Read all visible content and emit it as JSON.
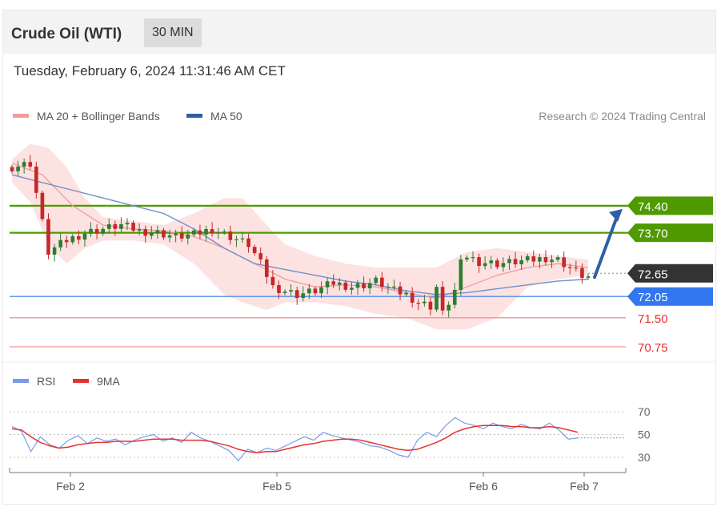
{
  "header": {
    "title": "Crude Oil (WTI)",
    "timeframe": "30 MIN",
    "datetime": "Tuesday, February 6, 2024 11:31:46 AM CET"
  },
  "legend": {
    "ma20": "MA 20 + Bollinger Bands",
    "ma50": "MA 50",
    "copyright": "Research © 2024 Trading Central"
  },
  "rsi_legend": {
    "rsi": "RSI",
    "ma9": "9MA"
  },
  "colors": {
    "resistance": "#4f9a00",
    "support": "#3377ee",
    "support_line": "#6699ee",
    "target_line": "#f08b8b",
    "target_text": "#e83030",
    "current": "#333333",
    "ma20": "#f29c9c",
    "bollinger": "#fde0e0",
    "ma50": "#6e8fc9",
    "candle_up": "#2e7d32",
    "candle_down": "#c62828",
    "arrow": "#2f5fa3",
    "rsi": "#7a9ae8",
    "rsi_ma": "#e83030"
  },
  "chart_data": [
    {
      "type": "candlestick",
      "title": "Crude Oil (WTI)",
      "timeframe": "30 MIN",
      "x_ticks": [
        "Feb 2",
        "Feb 5",
        "Feb 6",
        "Feb 7"
      ],
      "ylim": [
        70.5,
        76.2
      ],
      "levels": [
        {
          "value": 74.4,
          "label": "74.40",
          "kind": "resistance"
        },
        {
          "value": 73.7,
          "label": "73.70",
          "kind": "resistance"
        },
        {
          "value": 72.65,
          "label": "72.65",
          "kind": "current"
        },
        {
          "value": 72.05,
          "label": "72.05",
          "kind": "support"
        },
        {
          "value": 71.5,
          "label": "71.50",
          "kind": "target"
        },
        {
          "value": 70.75,
          "label": "70.75",
          "kind": "target"
        }
      ],
      "close_path": [
        [
          0,
          75.4
        ],
        [
          3,
          75.5
        ],
        [
          6,
          73.2
        ],
        [
          9,
          73.5
        ],
        [
          12,
          73.7
        ],
        [
          15,
          73.8
        ],
        [
          18,
          73.9
        ],
        [
          21,
          73.75
        ],
        [
          24,
          73.7
        ],
        [
          27,
          73.6
        ],
        [
          30,
          73.65
        ],
        [
          33,
          73.8
        ],
        [
          36,
          73.6
        ],
        [
          39,
          73.4
        ],
        [
          41,
          72.9
        ],
        [
          43,
          72.3
        ],
        [
          45,
          72.2
        ],
        [
          47,
          72.1
        ],
        [
          50,
          72.2
        ],
        [
          53,
          72.4
        ],
        [
          56,
          72.3
        ],
        [
          58,
          72.35
        ],
        [
          60,
          72.45
        ],
        [
          63,
          72.2
        ],
        [
          65,
          72.1
        ],
        [
          67,
          71.9
        ],
        [
          69,
          71.8
        ],
        [
          70,
          72.3
        ],
        [
          71,
          71.6
        ],
        [
          72,
          71.9
        ],
        [
          73,
          72.2
        ],
        [
          74,
          72.9
        ],
        [
          75,
          73.1
        ],
        [
          77,
          72.95
        ],
        [
          80,
          72.9
        ],
        [
          83,
          72.95
        ],
        [
          86,
          73.0
        ],
        [
          88,
          73.05
        ],
        [
          90,
          73.0
        ],
        [
          92,
          72.8
        ],
        [
          94,
          72.6
        ],
        [
          95,
          72.55
        ]
      ],
      "ma20_path": [
        [
          0,
          75.5
        ],
        [
          5,
          75.2
        ],
        [
          10,
          74.4
        ],
        [
          15,
          73.9
        ],
        [
          20,
          73.8
        ],
        [
          25,
          73.75
        ],
        [
          30,
          73.6
        ],
        [
          35,
          73.3
        ],
        [
          40,
          72.9
        ],
        [
          45,
          72.5
        ],
        [
          50,
          72.3
        ],
        [
          55,
          72.35
        ],
        [
          60,
          72.3
        ],
        [
          65,
          72.15
        ],
        [
          70,
          72.0
        ],
        [
          75,
          72.3
        ],
        [
          80,
          72.6
        ],
        [
          85,
          72.8
        ],
        [
          90,
          72.9
        ],
        [
          95,
          72.8
        ]
      ],
      "bb_upper_path": [
        [
          0,
          75.6
        ],
        [
          3,
          76.0
        ],
        [
          6,
          75.9
        ],
        [
          9,
          75.4
        ],
        [
          12,
          74.6
        ],
        [
          15,
          74.1
        ],
        [
          20,
          74.0
        ],
        [
          25,
          73.9
        ],
        [
          30,
          74.2
        ],
        [
          35,
          74.6
        ],
        [
          38,
          74.6
        ],
        [
          42,
          73.9
        ],
        [
          45,
          73.4
        ],
        [
          50,
          73.1
        ],
        [
          55,
          72.9
        ],
        [
          60,
          72.8
        ],
        [
          65,
          72.8
        ],
        [
          70,
          72.8
        ],
        [
          75,
          73.2
        ],
        [
          80,
          73.3
        ],
        [
          85,
          73.2
        ],
        [
          90,
          73.1
        ],
        [
          95,
          73.0
        ]
      ],
      "bb_lower_path": [
        [
          0,
          75.0
        ],
        [
          3,
          74.5
        ],
        [
          6,
          73.4
        ],
        [
          9,
          72.9
        ],
        [
          12,
          73.3
        ],
        [
          15,
          73.5
        ],
        [
          20,
          73.5
        ],
        [
          25,
          73.4
        ],
        [
          30,
          72.9
        ],
        [
          35,
          72.1
        ],
        [
          38,
          71.9
        ],
        [
          42,
          71.7
        ],
        [
          45,
          71.9
        ],
        [
          50,
          71.9
        ],
        [
          55,
          71.8
        ],
        [
          60,
          71.6
        ],
        [
          65,
          71.5
        ],
        [
          70,
          71.2
        ],
        [
          75,
          71.2
        ],
        [
          80,
          71.5
        ],
        [
          85,
          72.3
        ],
        [
          90,
          72.5
        ],
        [
          95,
          72.6
        ]
      ],
      "ma50_path": [
        [
          0,
          75.2
        ],
        [
          5,
          75.0
        ],
        [
          10,
          74.8
        ],
        [
          15,
          74.6
        ],
        [
          20,
          74.4
        ],
        [
          25,
          74.2
        ],
        [
          30,
          73.8
        ],
        [
          35,
          73.3
        ],
        [
          40,
          72.9
        ],
        [
          45,
          72.75
        ],
        [
          50,
          72.6
        ],
        [
          55,
          72.45
        ],
        [
          60,
          72.35
        ],
        [
          65,
          72.2
        ],
        [
          70,
          72.1
        ],
        [
          75,
          72.15
        ],
        [
          80,
          72.25
        ],
        [
          85,
          72.35
        ],
        [
          90,
          72.45
        ],
        [
          95,
          72.5
        ]
      ],
      "projection": {
        "from": 95,
        "to_value": 74.4,
        "label": "74.40"
      }
    },
    {
      "type": "line",
      "name": "RSI",
      "x_ticks": [
        "Feb 2",
        "Feb 5",
        "Feb 6",
        "Feb 7"
      ],
      "ylim": [
        20,
        80
      ],
      "y_ticks": [
        70,
        50,
        30
      ],
      "series": [
        {
          "name": "RSI",
          "values": [
            57,
            53,
            35,
            48,
            41,
            38,
            45,
            49,
            42,
            47,
            44,
            46,
            41,
            45,
            48,
            50,
            44,
            47,
            43,
            52,
            47,
            44,
            40,
            36,
            27,
            37,
            34,
            38,
            36,
            40,
            44,
            48,
            45,
            52,
            49,
            47,
            45,
            43,
            40,
            39,
            36,
            32,
            30,
            45,
            52,
            48,
            58,
            65,
            60,
            58,
            55,
            60,
            57,
            55,
            59,
            56,
            55,
            60,
            54,
            46,
            47
          ]
        },
        {
          "name": "9MA",
          "values": [
            55,
            54,
            48,
            43,
            40,
            38,
            39,
            41,
            42,
            43,
            43,
            44,
            44,
            44,
            45,
            46,
            46,
            46,
            45,
            45,
            45,
            44,
            42,
            40,
            37,
            35,
            34,
            35,
            35,
            37,
            39,
            41,
            42,
            44,
            45,
            46,
            46,
            45,
            43,
            41,
            39,
            37,
            36,
            37,
            40,
            43,
            47,
            52,
            55,
            57,
            58,
            58,
            58,
            57,
            57,
            56,
            56,
            57,
            56,
            54,
            52
          ]
        }
      ]
    }
  ]
}
